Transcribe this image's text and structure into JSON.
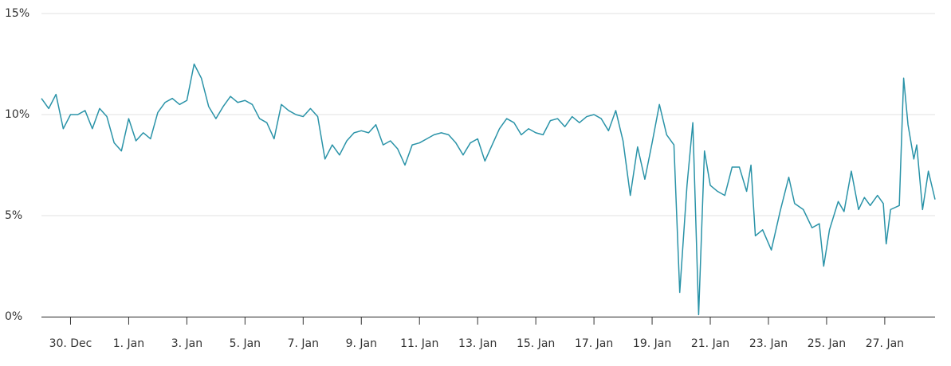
{
  "chart_data": {
    "type": "line",
    "color": "#2a93a8",
    "grid": true,
    "x": [
      -1,
      -0.75,
      -0.5,
      -0.25,
      0,
      0.25,
      0.5,
      0.75,
      1,
      1.25,
      1.5,
      1.75,
      2,
      2.25,
      2.5,
      2.75,
      3,
      3.25,
      3.5,
      3.75,
      4,
      4.25,
      4.5,
      4.75,
      5,
      5.25,
      5.5,
      5.75,
      6,
      6.25,
      6.5,
      6.75,
      7,
      7.25,
      7.5,
      7.75,
      8,
      8.25,
      8.5,
      8.75,
      9,
      9.25,
      9.5,
      9.75,
      10,
      10.25,
      10.5,
      10.75,
      11,
      11.25,
      11.5,
      11.75,
      12,
      12.25,
      12.5,
      12.75,
      13,
      13.25,
      13.5,
      13.75,
      14,
      14.25,
      14.5,
      14.75,
      15,
      15.25,
      15.5,
      15.75,
      16,
      16.25,
      16.5,
      16.75,
      17,
      17.25,
      17.5,
      17.75,
      18,
      18.25,
      18.5,
      18.75,
      19,
      19.25,
      19.5,
      19.75,
      20,
      20.25,
      20.5,
      20.75,
      20.95,
      21.2,
      21.4,
      21.6,
      21.8,
      22,
      22.25,
      22.5,
      22.75,
      23,
      23.25,
      23.4,
      23.55,
      23.8,
      24.1,
      24.4,
      24.7,
      24.9,
      25.2,
      25.5,
      25.75,
      25.9,
      26.1,
      26.4,
      26.6,
      26.85,
      27.1,
      27.3,
      27.5,
      27.75,
      27.95,
      28.05,
      28.2,
      28.5,
      28.65,
      28.8,
      29,
      29.1,
      29.3,
      29.5,
      29.73
    ],
    "values": [
      10.8,
      10.3,
      11.0,
      9.3,
      10.0,
      10.0,
      10.2,
      9.3,
      10.3,
      9.9,
      8.6,
      8.2,
      9.8,
      8.7,
      9.1,
      8.8,
      10.1,
      10.6,
      10.8,
      10.5,
      10.7,
      12.5,
      11.8,
      10.4,
      9.8,
      10.4,
      10.9,
      10.6,
      10.7,
      10.5,
      9.8,
      9.6,
      8.8,
      10.5,
      10.2,
      10.0,
      9.9,
      10.3,
      9.9,
      7.8,
      8.5,
      8.0,
      8.7,
      9.1,
      9.2,
      9.1,
      9.5,
      8.5,
      8.7,
      8.3,
      7.5,
      8.5,
      8.6,
      8.8,
      9.0,
      9.1,
      9.0,
      8.6,
      8.0,
      8.6,
      8.8,
      7.7,
      8.5,
      9.3,
      9.8,
      9.6,
      9.0,
      9.3,
      9.1,
      9.0,
      9.7,
      9.8,
      9.4,
      9.9,
      9.6,
      9.9,
      10.0,
      9.8,
      9.2,
      10.2,
      8.7,
      6.0,
      8.4,
      6.8,
      8.6,
      10.5,
      9.0,
      8.5,
      1.2,
      6.5,
      9.6,
      0.1,
      8.2,
      6.5,
      6.2,
      6.0,
      7.4,
      7.4,
      6.2,
      7.5,
      4.0,
      4.3,
      3.3,
      5.2,
      6.9,
      5.6,
      5.3,
      4.4,
      4.6,
      2.5,
      4.3,
      5.7,
      5.2,
      7.2,
      5.3,
      5.9,
      5.5,
      6.0,
      5.6,
      3.6,
      5.3,
      5.5,
      11.8,
      9.5,
      7.8,
      8.5,
      5.3,
      7.2,
      5.8
    ],
    "xlim": [
      -1,
      29.73
    ],
    "xticks": [
      {
        "value": 0,
        "label": "30. Dec"
      },
      {
        "value": 2,
        "label": "1. Jan"
      },
      {
        "value": 4,
        "label": "3. Jan"
      },
      {
        "value": 6,
        "label": "5. Jan"
      },
      {
        "value": 8,
        "label": "7. Jan"
      },
      {
        "value": 10,
        "label": "9. Jan"
      },
      {
        "value": 12,
        "label": "11. Jan"
      },
      {
        "value": 14,
        "label": "13. Jan"
      },
      {
        "value": 16,
        "label": "15. Jan"
      },
      {
        "value": 18,
        "label": "17. Jan"
      },
      {
        "value": 20,
        "label": "19. Jan"
      },
      {
        "value": 22,
        "label": "21. Jan"
      },
      {
        "value": 24,
        "label": "23. Jan"
      },
      {
        "value": 26,
        "label": "25. Jan"
      },
      {
        "value": 28,
        "label": "27. Jan"
      }
    ],
    "ylim": [
      0,
      15
    ],
    "yticks": [
      {
        "value": 0,
        "label": "0%"
      },
      {
        "value": 5,
        "label": "5%"
      },
      {
        "value": 10,
        "label": "10%"
      },
      {
        "value": 15,
        "label": "15%"
      }
    ]
  }
}
